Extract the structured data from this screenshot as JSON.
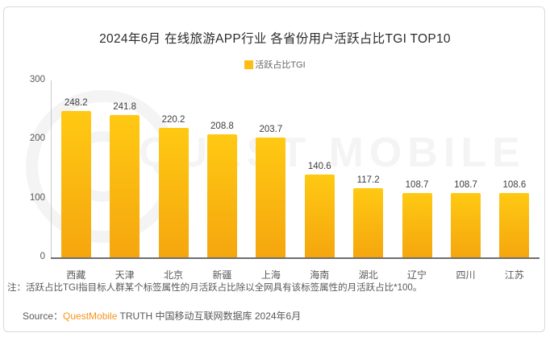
{
  "chart": {
    "title": "2024年6月 在线旅游APP行业 各省份用户活跃占比TGI TOP10",
    "legend_label": "活跃占比TGI"
  },
  "chart_data": {
    "type": "bar",
    "title": "2024年6月 在线旅游APP行业 各省份用户活跃占比TGI TOP10",
    "series_name": "活跃占比TGI",
    "categories": [
      "西藏",
      "天津",
      "北京",
      "新疆",
      "上海",
      "海南",
      "湖北",
      "辽宁",
      "四川",
      "江苏"
    ],
    "values": [
      248.2,
      241.8,
      220.2,
      208.8,
      203.7,
      140.6,
      117.2,
      108.7,
      108.7,
      108.6
    ],
    "xlabel": "",
    "ylabel": "",
    "ylim": [
      0,
      300
    ],
    "yticks": [
      0,
      100,
      200,
      300
    ],
    "grid": false,
    "legend_position": "top",
    "bar_color_top": "#FFC913",
    "bar_color_bottom": "#F5A60E"
  },
  "watermark": {
    "text": "QUEST MOBILE"
  },
  "footnote": "注：活跃占比TGI指目标人群某个标签属性的月活跃占比除以全网具有该标签属性的月活跃占比*100。",
  "source": {
    "prefix": "Source：",
    "brand": "QuestMobile",
    "suffix": " TRUTH 中国移动互联网数据库 2024年6月"
  },
  "colors": {
    "accent": "#FFBD12",
    "brand_orange": "#F5941D"
  }
}
